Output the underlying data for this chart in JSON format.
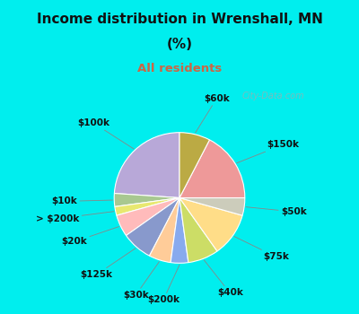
{
  "title_line1": "Income distribution in Wrenshall, MN",
  "title_line2": "(%)",
  "subtitle": "All residents",
  "title_color": "#111111",
  "subtitle_color": "#cc6644",
  "background_outer": "#00eeee",
  "watermark": "City-Data.com",
  "labels": [
    "$100k",
    "$10k",
    "> $200k",
    "$20k",
    "$125k",
    "$30k",
    "$200k",
    "$40k",
    "$75k",
    "$50k",
    "$150k",
    "$60k"
  ],
  "values": [
    22,
    3,
    2,
    5,
    7,
    5,
    4,
    7,
    10,
    4,
    16,
    7
  ],
  "colors": [
    "#b8a8d8",
    "#a8c890",
    "#e8e870",
    "#ffbbbb",
    "#8899cc",
    "#ffcc99",
    "#88aaee",
    "#ccdd66",
    "#ffdd88",
    "#ccccbb",
    "#ee9999",
    "#bbaa44"
  ],
  "startangle": 90,
  "label_fontsize": 7.5
}
